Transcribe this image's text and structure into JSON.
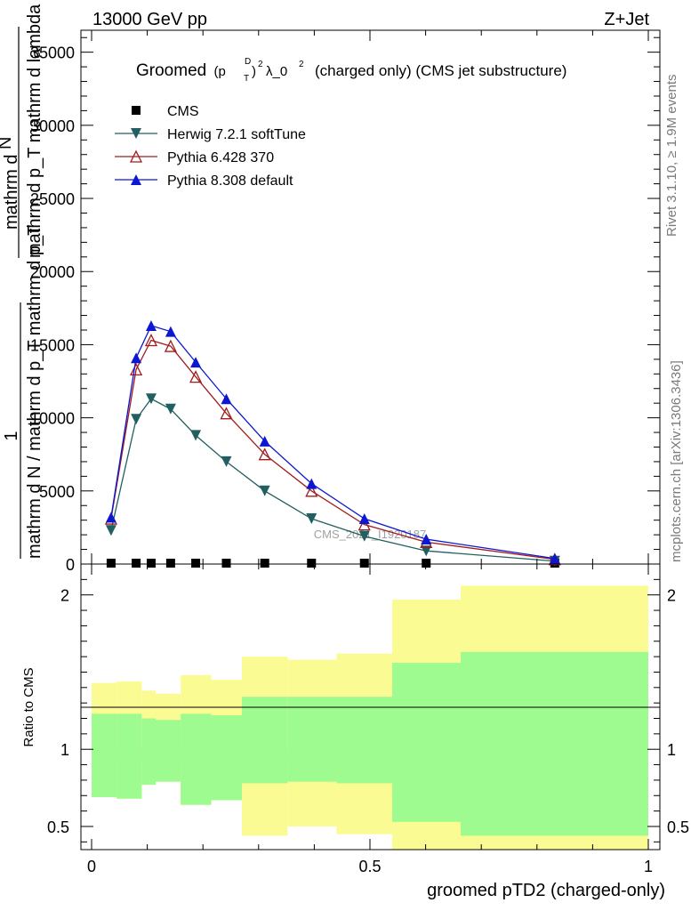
{
  "header": {
    "left": "13000 GeV pp",
    "right": "Z+Jet"
  },
  "side": {
    "rivet": "Rivet 3.1.10, ≥ 1.9M events",
    "mcplots": "mcplots.cern.ch [arXiv:1306.3436]"
  },
  "watermark": "CMS_2021_I1920187",
  "chart_data": {
    "type": "line",
    "title": {
      "prefix": "Groomed",
      "p": "(p",
      "sup_d": "D",
      "sub_t": "T",
      "close": ")",
      "sup2": "2",
      "lambda": "λ_0",
      "sup2b": "2",
      "rest": "(charged only) (CMS jet substructure)"
    },
    "xlabel": "groomed pTD2 (charged-only)",
    "ylabel_main": {
      "one": "1",
      "denominator": "mathrm d N / mathrm d p_T mathrm d p_T",
      "numerator": "mathrm d",
      "numerator_n": "N",
      "denominator2": "mathrm d p_T mathrm d lambda"
    },
    "ylabel_ratio": "Ratio to CMS",
    "xlim": [
      0,
      1
    ],
    "ylim_main": [
      0,
      36500
    ],
    "ylim_ratio": [
      0.35,
      2.2
    ],
    "x_ticks": [
      0,
      0.5,
      1
    ],
    "x_tick_labels": [
      "0",
      "0.5",
      "1"
    ],
    "y_ticks_main": [
      0,
      5000,
      10000,
      15000,
      20000,
      25000,
      30000,
      35000
    ],
    "y_tick_labels_main": [
      "0",
      "5000",
      "10000",
      "15000",
      "20000",
      "25000",
      "30000",
      "35000"
    ],
    "y_ticks_ratio": [
      0.5,
      1,
      2
    ],
    "y_tick_labels_ratio": [
      "0.5",
      "1",
      "2"
    ],
    "x": [
      0.035,
      0.08,
      0.107,
      0.142,
      0.187,
      0.242,
      0.311,
      0.395,
      0.49,
      0.601,
      0.832
    ],
    "series": [
      {
        "name": "CMS",
        "color": "#000000",
        "marker": "square",
        "values": [
          0,
          0,
          0,
          0,
          0,
          0,
          0,
          0,
          0,
          0,
          0
        ]
      },
      {
        "name": "Herwig 7.2.1 softTune",
        "color": "#215f60",
        "marker": "triangle-down",
        "values": [
          2300,
          9900,
          11300,
          10600,
          8800,
          7000,
          5000,
          3100,
          1900,
          900,
          200
        ]
      },
      {
        "name": "Pythia 6.428 370",
        "color": "#a01c1c",
        "marker": "triangle-up-open",
        "values": [
          3100,
          13300,
          15300,
          14900,
          12800,
          10300,
          7500,
          5000,
          2700,
          1500,
          320
        ]
      },
      {
        "name": "Pythia 8.308 default",
        "color": "#0d16d0",
        "marker": "triangle-up",
        "values": [
          3200,
          14100,
          16300,
          15900,
          13800,
          11300,
          8400,
          5500,
          3100,
          1700,
          380
        ]
      }
    ],
    "ratio_bands": {
      "edges": [
        0,
        0.045,
        0.09,
        0.115,
        0.16,
        0.215,
        0.27,
        0.352,
        0.44,
        0.54,
        0.663,
        1.0
      ],
      "stat_low": [
        0.86,
        0.86,
        0.89,
        0.88,
        0.9,
        0.9,
        0.935,
        0.935,
        0.935,
        0.935,
        0.935
      ],
      "stat_high": [
        1.23,
        1.23,
        1.2,
        1.19,
        1.23,
        1.22,
        1.34,
        1.34,
        1.34,
        1.56,
        1.63
      ],
      "syst_low": [
        0.69,
        0.68,
        0.77,
        0.79,
        0.64,
        0.67,
        0.78,
        0.79,
        0.78,
        0.53,
        0.44
      ],
      "syst_high": [
        1.43,
        1.44,
        1.38,
        1.36,
        1.48,
        1.45,
        1.6,
        1.58,
        1.62,
        1.97,
        2.06
      ],
      "syst_low_full": [
        0.69,
        0.68,
        0.77,
        0.79,
        0.64,
        0.67,
        0.44,
        0.5,
        0.45,
        0.3,
        0.3
      ],
      "colors": {
        "stat": "#9dfb8f",
        "syst": "#fbfb93"
      }
    },
    "grid": false,
    "legend_position": "top-left"
  }
}
